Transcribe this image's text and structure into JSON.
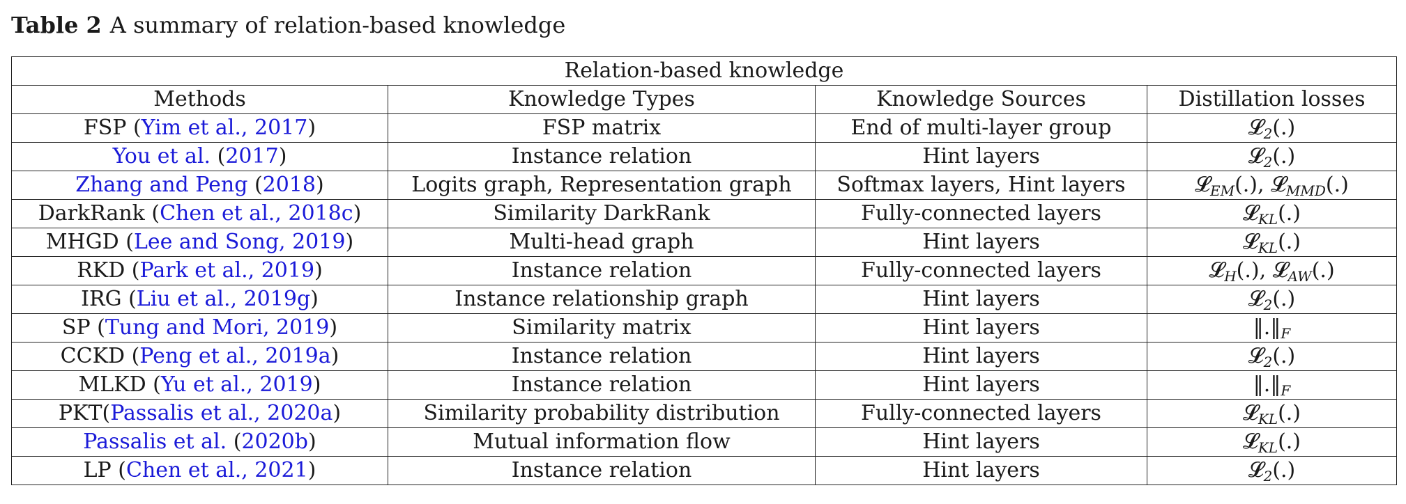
{
  "caption": {
    "number": "Table 2",
    "text": "A summary of relation-based knowledge"
  },
  "table": {
    "group_header": "Relation-based knowledge",
    "headers": [
      "Methods",
      "Knowledge Types",
      "Knowledge Sources",
      "Distillation losses"
    ],
    "rows": [
      {
        "method_prefix": "FSP (",
        "method_cite": "Yim et al., 2017",
        "method_suffix": ")",
        "type": "FSP matrix",
        "source": "End of multi-layer group",
        "loss": "𝓛2(.)"
      },
      {
        "method_prefix": "",
        "method_cite": "You et al.",
        "method_mid": " (",
        "method_cite2": "2017",
        "method_suffix": ")",
        "type": "Instance relation",
        "source": "Hint layers",
        "loss": "𝓛2(.)"
      },
      {
        "method_prefix": "",
        "method_cite": "Zhang and Peng",
        "method_mid": " (",
        "method_cite2": "2018",
        "method_suffix": ")",
        "type": "Logits graph, Representation graph",
        "source": "Softmax layers, Hint layers",
        "loss": "𝓛EM(.), 𝓛MMD(.)"
      },
      {
        "method_prefix": "DarkRank (",
        "method_cite": "Chen et al., 2018c",
        "method_suffix": ")",
        "type": "Similarity DarkRank",
        "source": "Fully-connected layers",
        "loss": "𝓛KL(.)"
      },
      {
        "method_prefix": "MHGD (",
        "method_cite": "Lee and Song, 2019",
        "method_suffix": ")",
        "type": "Multi-head graph",
        "source": "Hint layers",
        "loss": "𝓛KL(.)"
      },
      {
        "method_prefix": "RKD (",
        "method_cite": "Park et al., 2019",
        "method_suffix": ")",
        "type": "Instance relation",
        "source": "Fully-connected layers",
        "loss": "𝓛H(.), 𝓛AW(.)"
      },
      {
        "method_prefix": "IRG (",
        "method_cite": "Liu et al., 2019g",
        "method_suffix": ")",
        "type": "Instance relationship graph",
        "source": "Hint layers",
        "loss": "𝓛2(.)"
      },
      {
        "method_prefix": "SP (",
        "method_cite": "Tung and Mori, 2019",
        "method_suffix": ")",
        "type": "Similarity matrix",
        "source": "Hint layers",
        "loss": "‖.‖F"
      },
      {
        "method_prefix": "CCKD (",
        "method_cite": "Peng et al., 2019a",
        "method_suffix": ")",
        "type": "Instance relation",
        "source": "Hint layers",
        "loss": "𝓛2(.)"
      },
      {
        "method_prefix": "MLKD (",
        "method_cite": "Yu et al., 2019",
        "method_suffix": ")",
        "type": "Instance relation",
        "source": "Hint layers",
        "loss": "‖.‖F"
      },
      {
        "method_prefix": "PKT(",
        "method_cite": "Passalis et al., 2020a",
        "method_suffix": ")",
        "type": "Similarity probability distribution",
        "source": "Fully-connected layers",
        "loss": "𝓛KL(.)"
      },
      {
        "method_prefix": "",
        "method_cite": "Passalis et al.",
        "method_mid": " (",
        "method_cite2": "2020b",
        "method_suffix": ")",
        "type": "Mutual information flow",
        "source": "Hint layers",
        "loss": "𝓛KL(.)"
      },
      {
        "method_prefix": "LP (",
        "method_cite": "Chen et al., 2021",
        "method_suffix": ")",
        "type": "Instance relation",
        "source": "Hint layers",
        "loss": "𝓛2(.)"
      }
    ]
  }
}
